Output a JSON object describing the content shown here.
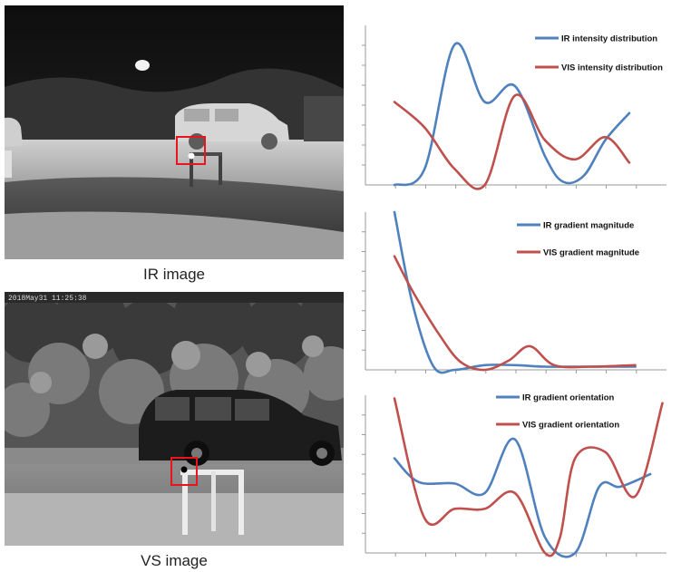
{
  "images": {
    "ir_caption": "IR image",
    "vs_caption": "VS image",
    "vs_timestamp": "2018May31 11:25:38"
  },
  "colors": {
    "ir": "#4f81bd",
    "vis": "#c0504d",
    "axis": "#999999",
    "box": "#e8151b"
  },
  "chart_data": [
    {
      "type": "line",
      "xlim": [
        0,
        10
      ],
      "ylim": [
        0,
        1
      ],
      "series": [
        {
          "name": "IR intensity distribution",
          "color": "#4f81bd",
          "x": [
            0,
            1,
            2,
            3,
            4,
            5,
            5.6,
            6.3,
            7,
            7.8
          ],
          "y": [
            0.0,
            0.1,
            0.88,
            0.52,
            0.62,
            0.18,
            0.02,
            0.06,
            0.28,
            0.45
          ]
        },
        {
          "name": "VIS intensity distribution",
          "color": "#c0504d",
          "x": [
            0,
            1,
            2,
            3,
            4,
            5,
            6,
            7,
            7.8
          ],
          "y": [
            0.52,
            0.36,
            0.1,
            0.0,
            0.56,
            0.28,
            0.16,
            0.3,
            0.14
          ]
        }
      ]
    },
    {
      "type": "line",
      "xlim": [
        0,
        10
      ],
      "ylim": [
        0,
        1
      ],
      "series": [
        {
          "name": "IR gradient magnitude",
          "color": "#4f81bd",
          "x": [
            0,
            0.6,
            1.3,
            2,
            3,
            4,
            5,
            6,
            7,
            8
          ],
          "y": [
            1.0,
            0.42,
            0.02,
            0.0,
            0.03,
            0.03,
            0.02,
            0.02,
            0.02,
            0.02
          ]
        },
        {
          "name": "VIS gradient magnitude",
          "color": "#c0504d",
          "x": [
            0,
            0.6,
            1.5,
            2.2,
            3,
            3.8,
            4.5,
            5.3,
            6.5,
            8
          ],
          "y": [
            0.72,
            0.5,
            0.22,
            0.05,
            0.0,
            0.06,
            0.15,
            0.03,
            0.02,
            0.03
          ]
        }
      ]
    },
    {
      "type": "line",
      "xlim": [
        0,
        10
      ],
      "ylim": [
        0,
        1
      ],
      "series": [
        {
          "name": "IR gradient orientation",
          "color": "#4f81bd",
          "x": [
            0,
            0.8,
            2,
            3,
            4,
            5,
            6,
            6.8,
            7.5,
            8.5
          ],
          "y": [
            0.6,
            0.45,
            0.44,
            0.38,
            0.72,
            0.1,
            0.0,
            0.42,
            0.42,
            0.5
          ]
        },
        {
          "name": "VIS gradient orientation",
          "color": "#c0504d",
          "x": [
            0,
            1,
            2,
            3,
            4,
            5,
            5.5,
            6,
            7,
            8,
            8.9
          ],
          "y": [
            0.98,
            0.22,
            0.28,
            0.28,
            0.38,
            0.0,
            0.1,
            0.6,
            0.64,
            0.36,
            0.95
          ]
        }
      ]
    }
  ]
}
